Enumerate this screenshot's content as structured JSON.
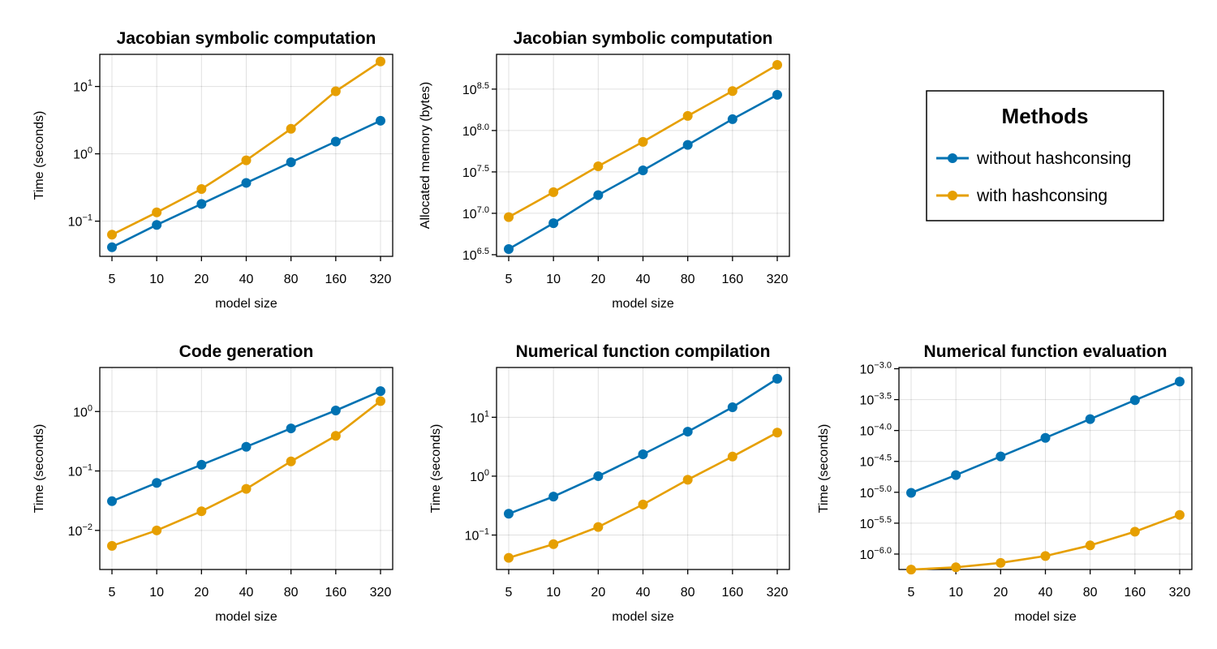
{
  "legend": {
    "title": "Methods",
    "entries": [
      {
        "label": "without hashconsing",
        "color": "#0072b2"
      },
      {
        "label": "with hashconsing",
        "color": "#e69f00"
      }
    ]
  },
  "chart_data": [
    {
      "type": "line",
      "title": "Jacobian symbolic computation",
      "xlabel": "model size",
      "ylabel": "Time (seconds)",
      "yscale": "log10",
      "grid": true,
      "categories": [
        "5",
        "10",
        "20",
        "40",
        "80",
        "160",
        "320"
      ],
      "yticks": [
        {
          "base": "10",
          "exp": "−1"
        },
        {
          "base": "10",
          "exp": "0"
        },
        {
          "base": "10",
          "exp": "1"
        }
      ],
      "series": [
        {
          "name": "without hashconsing",
          "values": [
            0.041,
            0.088,
            0.18,
            0.37,
            0.75,
            1.52,
            3.1
          ]
        },
        {
          "name": "with hashconsing",
          "values": [
            0.063,
            0.135,
            0.3,
            0.8,
            2.35,
            8.5,
            23.5
          ]
        }
      ]
    },
    {
      "type": "line",
      "title": "Jacobian symbolic computation",
      "xlabel": "model size",
      "ylabel": "Allocated memory (bytes)",
      "yscale": "log10",
      "grid": true,
      "categories": [
        "5",
        "10",
        "20",
        "40",
        "80",
        "160",
        "320"
      ],
      "yticks": [
        {
          "base": "10",
          "exp": "6.5"
        },
        {
          "base": "10",
          "exp": "7.0"
        },
        {
          "base": "10",
          "exp": "7.5"
        },
        {
          "base": "10",
          "exp": "8.0"
        },
        {
          "base": "10",
          "exp": "8.5"
        }
      ],
      "series": [
        {
          "name": "without hashconsing",
          "values": [
            3700000.0,
            7600000.0,
            16600000.0,
            33000000.0,
            67000000.0,
            137000000.0,
            270000000.0
          ]
        },
        {
          "name": "with hashconsing",
          "values": [
            9000000.0,
            18000000.0,
            37000000.0,
            73000000.0,
            150000000.0,
            300000000.0,
            620000000.0
          ]
        }
      ]
    },
    {
      "type": "line",
      "title": "Code generation",
      "xlabel": "model size",
      "ylabel": "Time (seconds)",
      "yscale": "log10",
      "grid": true,
      "categories": [
        "5",
        "10",
        "20",
        "40",
        "80",
        "160",
        "320"
      ],
      "yticks": [
        {
          "base": "10",
          "exp": "−2"
        },
        {
          "base": "10",
          "exp": "−1"
        },
        {
          "base": "10",
          "exp": "0"
        }
      ],
      "series": [
        {
          "name": "without hashconsing",
          "values": [
            0.031,
            0.063,
            0.127,
            0.255,
            0.52,
            1.04,
            2.2
          ]
        },
        {
          "name": "with hashconsing",
          "values": [
            0.0055,
            0.01,
            0.021,
            0.05,
            0.145,
            0.39,
            1.5
          ]
        }
      ]
    },
    {
      "type": "line",
      "title": "Numerical function compilation",
      "xlabel": "model size",
      "ylabel": "Time (seconds)",
      "yscale": "log10",
      "grid": true,
      "categories": [
        "5",
        "10",
        "20",
        "40",
        "80",
        "160",
        "320"
      ],
      "yticks": [
        {
          "base": "10",
          "exp": "−1"
        },
        {
          "base": "10",
          "exp": "0"
        },
        {
          "base": "10",
          "exp": "1"
        }
      ],
      "series": [
        {
          "name": "without hashconsing",
          "values": [
            0.23,
            0.45,
            1.0,
            2.35,
            5.7,
            14.8,
            45
          ]
        },
        {
          "name": "with hashconsing",
          "values": [
            0.041,
            0.07,
            0.137,
            0.33,
            0.87,
            2.15,
            5.5
          ]
        }
      ]
    },
    {
      "type": "line",
      "title": "Numerical function evaluation",
      "xlabel": "model size",
      "ylabel": "Time (seconds)",
      "yscale": "log10",
      "grid": true,
      "categories": [
        "5",
        "10",
        "20",
        "40",
        "80",
        "160",
        "320"
      ],
      "yticks": [
        {
          "base": "10",
          "exp": "−6.0"
        },
        {
          "base": "10",
          "exp": "−5.5"
        },
        {
          "base": "10",
          "exp": "−5.0"
        },
        {
          "base": "10",
          "exp": "−4.5"
        },
        {
          "base": "10",
          "exp": "−4.0"
        },
        {
          "base": "10",
          "exp": "−3.5"
        },
        {
          "base": "10",
          "exp": "−3.0"
        }
      ],
      "series": [
        {
          "name": "without hashconsing",
          "values": [
            9.8e-06,
            1.9e-05,
            3.8e-05,
            7.6e-05,
            0.000153,
            0.00031,
            0.00062
          ]
        },
        {
          "name": "with hashconsing",
          "values": [
            5.6e-07,
            6.1e-07,
            7.2e-07,
            9.3e-07,
            1.38e-06,
            2.3e-06,
            4.3e-06
          ]
        }
      ]
    }
  ]
}
